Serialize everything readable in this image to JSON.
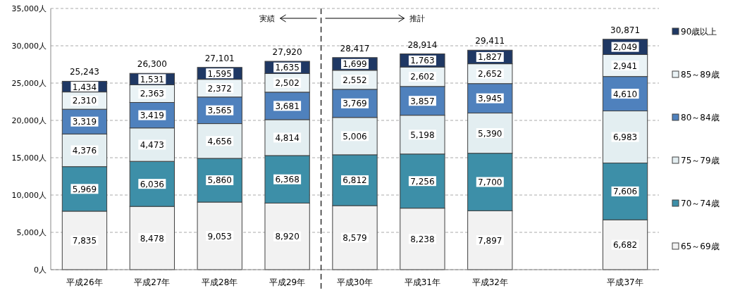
{
  "chart_data": {
    "type": "bar",
    "stacked": true,
    "categories": [
      "平成26年",
      "平成27年",
      "平成28年",
      "平成29年",
      "平成30年",
      "平成31年",
      "平成32年",
      null,
      "平成37年"
    ],
    "series": [
      {
        "name": "65～69歳",
        "color": "#f2f2f2",
        "values": [
          7835,
          8478,
          9053,
          8920,
          8579,
          8238,
          7897,
          null,
          6682
        ],
        "value_labels": [
          "7,835",
          "8,478",
          "9,053",
          "8,920",
          "8,579",
          "8,238",
          "7,897",
          null,
          "6,682"
        ]
      },
      {
        "name": "70～74歳",
        "color": "#3d8fa8",
        "values": [
          5969,
          6036,
          5860,
          6368,
          6812,
          7256,
          7700,
          null,
          7606
        ],
        "value_labels": [
          "5,969",
          "6,036",
          "5,860",
          "6,368",
          "6,812",
          "7,256",
          "7,700",
          null,
          "7,606"
        ]
      },
      {
        "name": "75～79歳",
        "color": "#e3eef1",
        "values": [
          4376,
          4473,
          4656,
          4814,
          5006,
          5198,
          5390,
          null,
          6983
        ],
        "value_labels": [
          "4,376",
          "4,473",
          "4,656",
          "4,814",
          "5,006",
          "5,198",
          "5,390",
          null,
          "6,983"
        ]
      },
      {
        "name": "80～84歳",
        "color": "#4f81bd",
        "values": [
          3319,
          3419,
          3565,
          3681,
          3769,
          3857,
          3945,
          null,
          4610
        ],
        "value_labels": [
          "3,319",
          "3,419",
          "3,565",
          "3,681",
          "3,769",
          "3,857",
          "3,945",
          null,
          "4,610"
        ]
      },
      {
        "name": "85～89歳",
        "color": "#eaf3f6",
        "values": [
          2310,
          2363,
          2372,
          2502,
          2552,
          2602,
          2652,
          null,
          2941
        ],
        "value_labels": [
          "2,310",
          "2,363",
          "2,372",
          "2,502",
          "2,552",
          "2,602",
          "2,652",
          null,
          "2,941"
        ]
      },
      {
        "name": "90歳以上",
        "color": "#1f3864",
        "values": [
          1434,
          1531,
          1595,
          1635,
          1699,
          1763,
          1827,
          null,
          2049
        ],
        "value_labels": [
          "1,434",
          "1,531",
          "1,595",
          "1,635",
          "1,699",
          "1,763",
          "1,827",
          null,
          "2,049"
        ]
      }
    ],
    "totals": [
      "25,243",
      "26,300",
      "27,101",
      "27,920",
      "28,417",
      "28,914",
      "29,411",
      null,
      "30,871"
    ],
    "ylim": [
      0,
      35000
    ],
    "yticks": [
      {
        "value": 0,
        "label": "0人"
      },
      {
        "value": 5000,
        "label": "5,000人"
      },
      {
        "value": 10000,
        "label": "10,000人"
      },
      {
        "value": 15000,
        "label": "15,000人"
      },
      {
        "value": 20000,
        "label": "20,000人"
      },
      {
        "value": 25000,
        "label": "25,000人"
      },
      {
        "value": 30000,
        "label": "30,000人"
      },
      {
        "value": 35000,
        "label": "35,000人"
      }
    ],
    "grid": "y",
    "legend": "right",
    "annotations": [
      "実績",
      "推計"
    ]
  }
}
